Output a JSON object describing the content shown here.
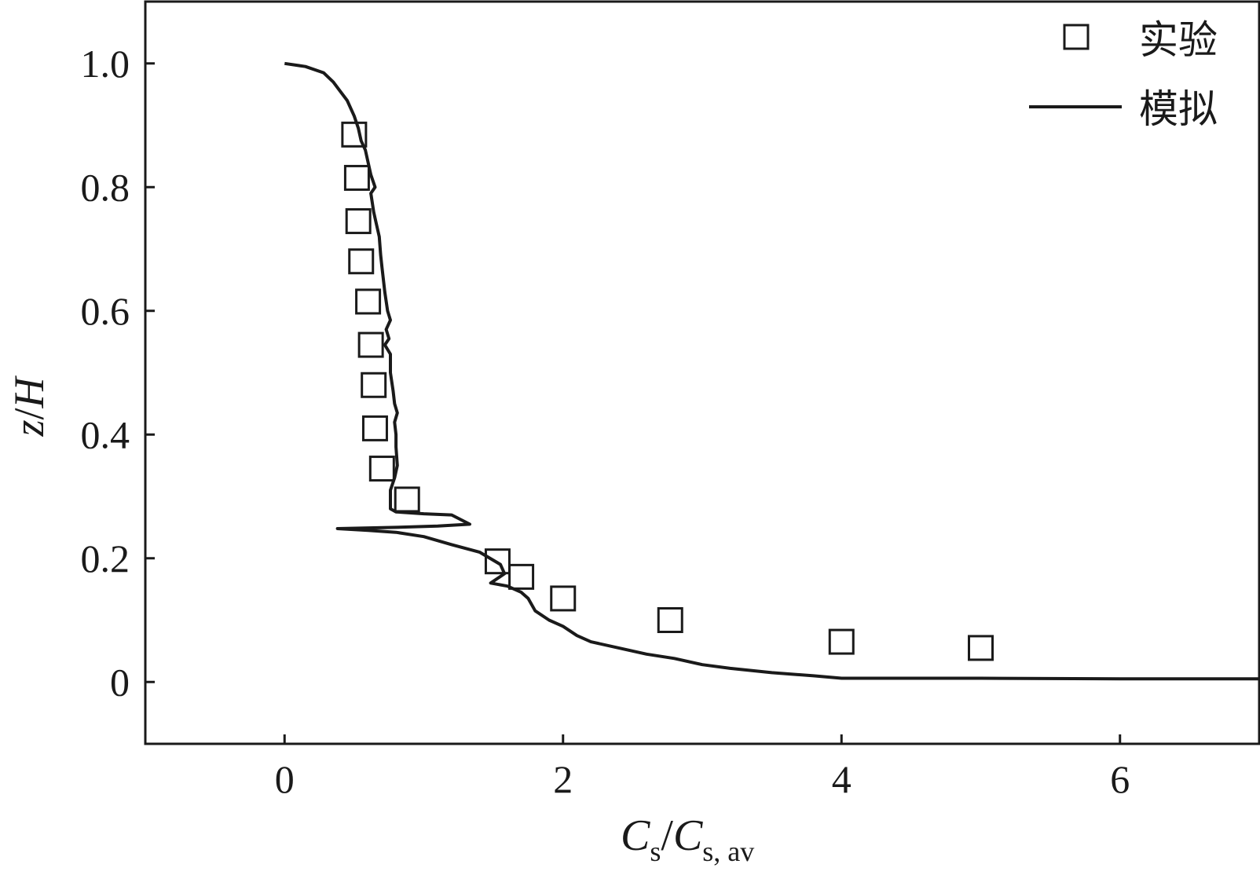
{
  "chart_data": {
    "type": "line",
    "xlabel": {
      "main": "C",
      "sub1": "s",
      "sep": "/",
      "main2": "C",
      "sub2": "s, av"
    },
    "ylabel": {
      "main": "z",
      "sep": "/",
      "main2": "H"
    },
    "xlim": [
      -1,
      7
    ],
    "ylim": [
      -0.1,
      1.1
    ],
    "x_ticks": [
      0,
      2,
      4,
      6
    ],
    "y_ticks": [
      0,
      0.2,
      0.4,
      0.6,
      0.8,
      1.0
    ],
    "x_tick_labels": [
      "0",
      "2",
      "4",
      "6"
    ],
    "y_tick_labels": [
      "0",
      "0.2",
      "0.4",
      "0.6",
      "0.8",
      "1.0"
    ],
    "grid": false,
    "legend_position": "top-right",
    "series": [
      {
        "name": "实验",
        "kind": "scatter",
        "marker": "open-square",
        "color": "#1a1a1a",
        "points": [
          [
            0.5,
            0.885
          ],
          [
            0.52,
            0.815
          ],
          [
            0.53,
            0.745
          ],
          [
            0.55,
            0.68
          ],
          [
            0.6,
            0.615
          ],
          [
            0.62,
            0.545
          ],
          [
            0.64,
            0.48
          ],
          [
            0.65,
            0.41
          ],
          [
            0.7,
            0.345
          ],
          [
            0.88,
            0.295
          ],
          [
            1.53,
            0.195
          ],
          [
            1.7,
            0.17
          ],
          [
            2.0,
            0.135
          ],
          [
            2.77,
            0.1
          ],
          [
            4.0,
            0.065
          ],
          [
            5.0,
            0.055
          ]
        ]
      },
      {
        "name": "模拟",
        "kind": "line",
        "color": "#1a1a1a",
        "points": [
          [
            0.0,
            1.0
          ],
          [
            0.15,
            0.995
          ],
          [
            0.28,
            0.985
          ],
          [
            0.35,
            0.97
          ],
          [
            0.4,
            0.955
          ],
          [
            0.45,
            0.94
          ],
          [
            0.5,
            0.915
          ],
          [
            0.53,
            0.895
          ],
          [
            0.55,
            0.875
          ],
          [
            0.58,
            0.86
          ],
          [
            0.6,
            0.84
          ],
          [
            0.62,
            0.82
          ],
          [
            0.65,
            0.8
          ],
          [
            0.62,
            0.79
          ],
          [
            0.64,
            0.76
          ],
          [
            0.66,
            0.74
          ],
          [
            0.68,
            0.72
          ],
          [
            0.69,
            0.69
          ],
          [
            0.7,
            0.67
          ],
          [
            0.71,
            0.65
          ],
          [
            0.72,
            0.63
          ],
          [
            0.74,
            0.6
          ],
          [
            0.76,
            0.585
          ],
          [
            0.73,
            0.57
          ],
          [
            0.75,
            0.555
          ],
          [
            0.72,
            0.545
          ],
          [
            0.76,
            0.53
          ],
          [
            0.76,
            0.5
          ],
          [
            0.78,
            0.47
          ],
          [
            0.79,
            0.45
          ],
          [
            0.81,
            0.435
          ],
          [
            0.79,
            0.42
          ],
          [
            0.8,
            0.4
          ],
          [
            0.8,
            0.38
          ],
          [
            0.81,
            0.35
          ],
          [
            0.79,
            0.33
          ],
          [
            0.76,
            0.31
          ],
          [
            0.76,
            0.28
          ],
          [
            0.8,
            0.275
          ],
          [
            1.0,
            0.272
          ],
          [
            1.2,
            0.27
          ],
          [
            1.33,
            0.255
          ],
          [
            1.1,
            0.252
          ],
          [
            0.8,
            0.25
          ],
          [
            0.38,
            0.248
          ],
          [
            0.6,
            0.245
          ],
          [
            0.8,
            0.242
          ],
          [
            1.0,
            0.235
          ],
          [
            1.2,
            0.222
          ],
          [
            1.4,
            0.21
          ],
          [
            1.55,
            0.19
          ],
          [
            1.58,
            0.175
          ],
          [
            1.48,
            0.16
          ],
          [
            1.6,
            0.155
          ],
          [
            1.7,
            0.145
          ],
          [
            1.75,
            0.135
          ],
          [
            1.8,
            0.115
          ],
          [
            1.9,
            0.1
          ],
          [
            2.0,
            0.09
          ],
          [
            2.1,
            0.075
          ],
          [
            2.2,
            0.065
          ],
          [
            2.4,
            0.055
          ],
          [
            2.6,
            0.045
          ],
          [
            2.8,
            0.038
          ],
          [
            3.0,
            0.028
          ],
          [
            3.2,
            0.022
          ],
          [
            3.5,
            0.015
          ],
          [
            3.8,
            0.01
          ],
          [
            4.0,
            0.006
          ],
          [
            5.0,
            0.006
          ],
          [
            6.0,
            0.005
          ],
          [
            7.0,
            0.005
          ]
        ]
      }
    ]
  }
}
